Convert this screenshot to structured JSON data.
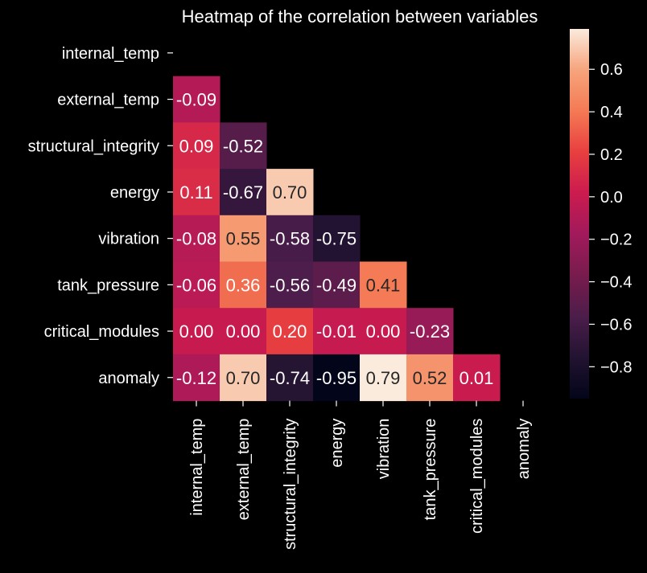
{
  "chart_data": {
    "type": "heatmap",
    "title": "Heatmap of the correlation between variables",
    "variables": [
      "internal_temp",
      "external_temp",
      "structural_integrity",
      "energy",
      "vibration",
      "tank_pressure",
      "critical_modules",
      "anomaly"
    ],
    "mask": "upper-triangle including diagonal",
    "cells": [
      {
        "row": "external_temp",
        "col": "internal_temp",
        "value": -0.09,
        "label": "-0.09"
      },
      {
        "row": "structural_integrity",
        "col": "internal_temp",
        "value": 0.09,
        "label": "0.09"
      },
      {
        "row": "structural_integrity",
        "col": "external_temp",
        "value": -0.52,
        "label": "-0.52"
      },
      {
        "row": "energy",
        "col": "internal_temp",
        "value": 0.11,
        "label": "0.11"
      },
      {
        "row": "energy",
        "col": "external_temp",
        "value": -0.67,
        "label": "-0.67"
      },
      {
        "row": "energy",
        "col": "structural_integrity",
        "value": 0.7,
        "label": "0.70"
      },
      {
        "row": "vibration",
        "col": "internal_temp",
        "value": -0.08,
        "label": "-0.08"
      },
      {
        "row": "vibration",
        "col": "external_temp",
        "value": 0.55,
        "label": "0.55"
      },
      {
        "row": "vibration",
        "col": "structural_integrity",
        "value": -0.58,
        "label": "-0.58"
      },
      {
        "row": "vibration",
        "col": "energy",
        "value": -0.75,
        "label": "-0.75"
      },
      {
        "row": "tank_pressure",
        "col": "internal_temp",
        "value": -0.06,
        "label": "-0.06"
      },
      {
        "row": "tank_pressure",
        "col": "external_temp",
        "value": 0.36,
        "label": "0.36"
      },
      {
        "row": "tank_pressure",
        "col": "structural_integrity",
        "value": -0.56,
        "label": "-0.56"
      },
      {
        "row": "tank_pressure",
        "col": "energy",
        "value": -0.49,
        "label": "-0.49"
      },
      {
        "row": "tank_pressure",
        "col": "vibration",
        "value": 0.41,
        "label": "0.41"
      },
      {
        "row": "critical_modules",
        "col": "internal_temp",
        "value": 0.0,
        "label": "0.00"
      },
      {
        "row": "critical_modules",
        "col": "external_temp",
        "value": 0.0,
        "label": "0.00"
      },
      {
        "row": "critical_modules",
        "col": "structural_integrity",
        "value": 0.2,
        "label": "0.20"
      },
      {
        "row": "critical_modules",
        "col": "energy",
        "value": -0.01,
        "label": "-0.01"
      },
      {
        "row": "critical_modules",
        "col": "vibration",
        "value": 0.0,
        "label": "0.00"
      },
      {
        "row": "critical_modules",
        "col": "tank_pressure",
        "value": -0.23,
        "label": "-0.23"
      },
      {
        "row": "anomaly",
        "col": "internal_temp",
        "value": -0.12,
        "label": "-0.12"
      },
      {
        "row": "anomaly",
        "col": "external_temp",
        "value": 0.7,
        "label": "0.70"
      },
      {
        "row": "anomaly",
        "col": "structural_integrity",
        "value": -0.74,
        "label": "-0.74"
      },
      {
        "row": "anomaly",
        "col": "energy",
        "value": -0.95,
        "label": "-0.95"
      },
      {
        "row": "anomaly",
        "col": "vibration",
        "value": 0.79,
        "label": "0.79"
      },
      {
        "row": "anomaly",
        "col": "tank_pressure",
        "value": 0.52,
        "label": "0.52"
      },
      {
        "row": "anomaly",
        "col": "critical_modules",
        "value": 0.01,
        "label": "0.01"
      }
    ],
    "colorbar": {
      "range": [
        -0.95,
        0.79
      ],
      "ticks": [
        0.6,
        0.4,
        0.2,
        0.0,
        -0.2,
        -0.4,
        -0.6,
        -0.8
      ],
      "tick_labels": [
        "0.6",
        "0.4",
        "0.2",
        "0.0",
        "−0.2",
        "−0.4",
        "−0.6",
        "−0.8"
      ],
      "colormap": "rocket",
      "colormap_stops": [
        "#03051A",
        "#221331",
        "#4C1D4B",
        "#781C4D",
        "#A11A5B",
        "#CB1B4F",
        "#E83F3F",
        "#F47A54",
        "#F6A47C",
        "#FAEBDD"
      ]
    },
    "background_color": "#000000",
    "text_color": "#FFFFFF",
    "cell_text_light": "#FFFFFF",
    "cell_text_dark": "#262626"
  }
}
